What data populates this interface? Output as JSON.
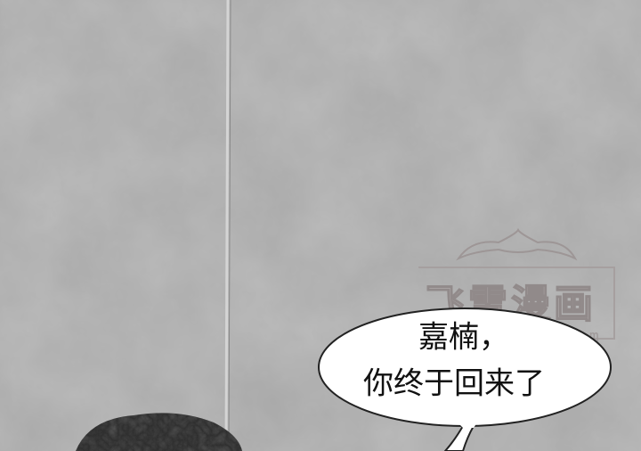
{
  "watermark": {
    "title": "飞雪漫画",
    "url": "uemh.com"
  },
  "speech_bubble": {
    "lines": [
      "嘉楠，",
      "你终于回来了"
    ]
  }
}
